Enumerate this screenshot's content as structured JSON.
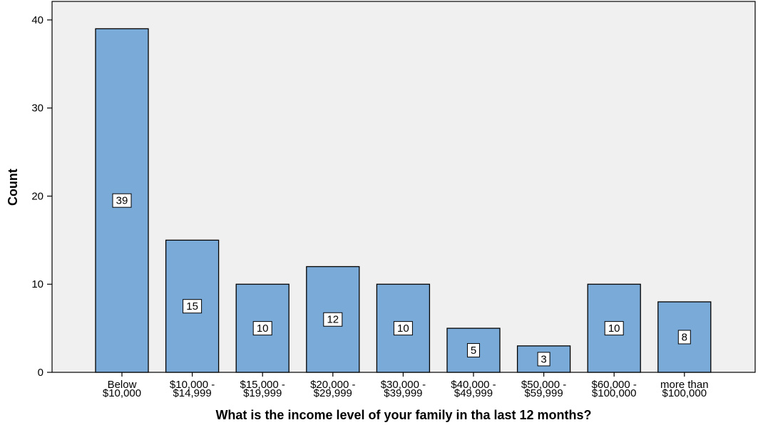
{
  "chart_data": {
    "type": "bar",
    "categories": [
      [
        "Below",
        "$10,000"
      ],
      [
        "$10,000 -",
        "$14,999"
      ],
      [
        "$15,000 -",
        "$19,999"
      ],
      [
        "$20,000 -",
        "$29,999"
      ],
      [
        "$30,000 -",
        "$39,999"
      ],
      [
        "$40,000 -",
        "$49,999"
      ],
      [
        "$50,000 -",
        "$59,999"
      ],
      [
        "$60,000 -",
        "$100,000"
      ],
      [
        "more than",
        "$100,000"
      ]
    ],
    "values": [
      39,
      15,
      10,
      12,
      10,
      5,
      3,
      10,
      8
    ],
    "xlabel": "What is the income level of your family in tha last 12 months?",
    "ylabel": "Count",
    "ylim": [
      0,
      40
    ],
    "yticks": [
      0,
      10,
      20,
      30,
      40
    ],
    "grid": false,
    "colors": {
      "bar_fill": "#7aaad8",
      "bar_stroke": "#000000",
      "plot_background": "#f0f0f0"
    }
  }
}
